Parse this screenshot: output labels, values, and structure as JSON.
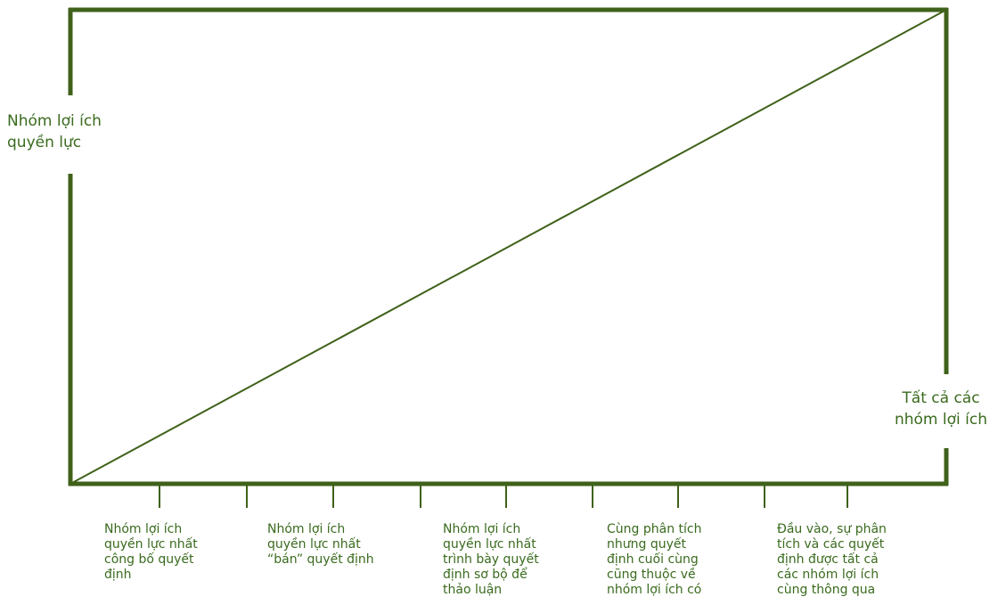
{
  "colors": {
    "line": "#3f611a",
    "text": "#3a6b1e"
  },
  "labels": {
    "top_left": "Nhóm lợi ích\nquyền lực",
    "bottom_right": "Tất cả các\nnhóm lợi ích"
  },
  "steps": [
    {
      "text": "Nhóm lợi ích\nquyền lực nhất\ncông bố quyết\nđịnh"
    },
    {
      "text": "Nhóm lợi ích\nquyền lực nhất\n“bán” quyết định"
    },
    {
      "text": "Nhóm lợi ích\nquyền lực nhất\ntrình bày quyết\nđịnh sơ bộ để\nthảo luận"
    },
    {
      "text": "Cùng phân tích\nnhưng quyết\nđịnh cuối cùng\ncũng thuộc về\nnhóm lợi ích có"
    },
    {
      "text": "Đầu vào, sự phân\ntích và các quyết\nđịnh được tất cả\ncác nhóm lợi ích\ncùng thông qua"
    }
  ]
}
